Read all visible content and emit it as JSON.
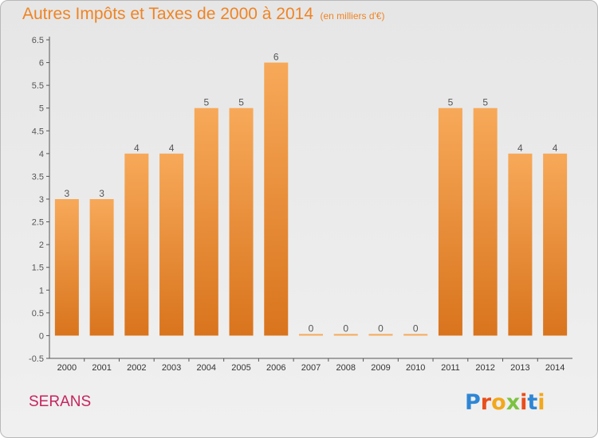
{
  "title": "Autres Impôts et Taxes de 2000 à 2014",
  "unit": "(en milliers d'€)",
  "place": "SERANS",
  "logo": {
    "text": "Proxiti",
    "letters": [
      {
        "ch": "P",
        "color": "#2e86d4"
      },
      {
        "ch": "r",
        "color": "#e94e1b"
      },
      {
        "ch": "o",
        "color": "#f2a81d"
      },
      {
        "ch": "x",
        "color": "#7cc242"
      },
      {
        "ch": "i",
        "color": "#e94e1b"
      },
      {
        "ch": "t",
        "color": "#2e86d4"
      },
      {
        "ch": "i",
        "color": "#f2a81d"
      }
    ]
  },
  "colors": {
    "bar_top": "#f7a959",
    "bar_bottom": "#d9741d",
    "text": "#555555",
    "accent": "#ef8424"
  },
  "chart_data": {
    "type": "bar",
    "categories": [
      "2000",
      "2001",
      "2002",
      "2003",
      "2004",
      "2005",
      "2006",
      "2007",
      "2008",
      "2009",
      "2010",
      "2011",
      "2012",
      "2013",
      "2014"
    ],
    "values": [
      3,
      3,
      4,
      4,
      5,
      5,
      6,
      0,
      0,
      0,
      0,
      5,
      5,
      4,
      4
    ],
    "data_labels": [
      "3",
      "3",
      "4",
      "4",
      "5",
      "5",
      "6",
      "0",
      "0",
      "0",
      "0",
      "5",
      "5",
      "4",
      "4"
    ],
    "yticks": [
      "-0.5",
      "0",
      "0.5",
      "1",
      "1.5",
      "2",
      "2.5",
      "3",
      "3.5",
      "4",
      "4.5",
      "5",
      "5.5",
      "6",
      "6.5"
    ],
    "ylim": [
      -0.5,
      6.5
    ],
    "grid": false,
    "legend": "none"
  }
}
